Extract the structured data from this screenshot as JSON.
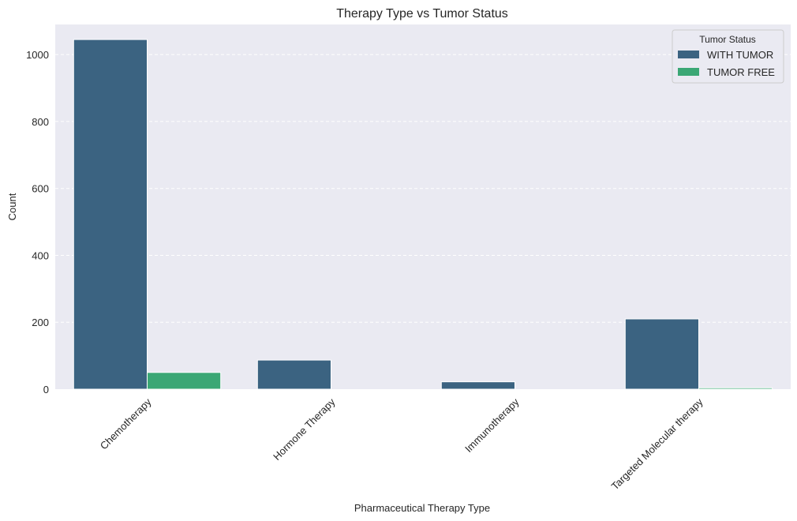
{
  "chart_data": {
    "type": "bar",
    "title": "Therapy Type vs Tumor Status",
    "xlabel": "Pharmaceutical Therapy Type",
    "ylabel": "Count",
    "categories": [
      "Chemotherapy",
      "Hormone Therapy",
      "Immunotherapy",
      "Targeted Molecular therapy"
    ],
    "series": [
      {
        "name": "WITH TUMOR",
        "color": "#3b6381",
        "values": [
          1045,
          87,
          22,
          210
        ]
      },
      {
        "name": "TUMOR FREE",
        "color": "#3ba775",
        "values": [
          50,
          0,
          0,
          4
        ]
      }
    ],
    "ylim": [
      0,
      1090
    ],
    "yticks": [
      0,
      200,
      400,
      600,
      800,
      1000
    ],
    "grid": true,
    "legend": {
      "title": "Tumor Status",
      "placement": "top-right"
    },
    "background_color": "#eaeaf2"
  }
}
